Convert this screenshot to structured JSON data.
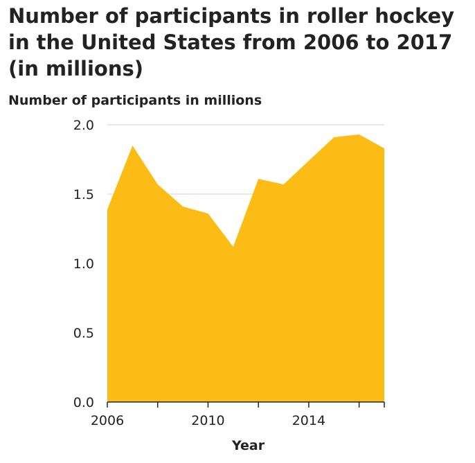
{
  "chart_data": {
    "type": "area",
    "title": "Number of participants in roller hockey in the United States from 2006 to 2017 (in millions)",
    "xlabel": "Year",
    "ylabel": "Number of participants in millions",
    "x": [
      2006,
      2007,
      2008,
      2009,
      2010,
      2011,
      2012,
      2013,
      2014,
      2015,
      2016,
      2017
    ],
    "values": [
      1.39,
      1.85,
      1.57,
      1.41,
      1.36,
      1.12,
      1.61,
      1.57,
      1.74,
      1.91,
      1.93,
      1.83
    ],
    "xlim": [
      2006,
      2017
    ],
    "ylim": [
      0,
      2.0
    ],
    "yticks": [
      0.0,
      0.5,
      1.0,
      1.5,
      2.0
    ],
    "ytick_labels": [
      "0.0",
      "0.5",
      "1.0",
      "1.5",
      "2.0"
    ],
    "xticks": [
      2006,
      2007,
      2008,
      2009,
      2010,
      2011,
      2012,
      2013,
      2014,
      2015,
      2016,
      2017
    ],
    "xtick_labels": [
      2006,
      2010,
      2014
    ],
    "grid": "horizontal",
    "fill_color": "#fbbd15"
  }
}
